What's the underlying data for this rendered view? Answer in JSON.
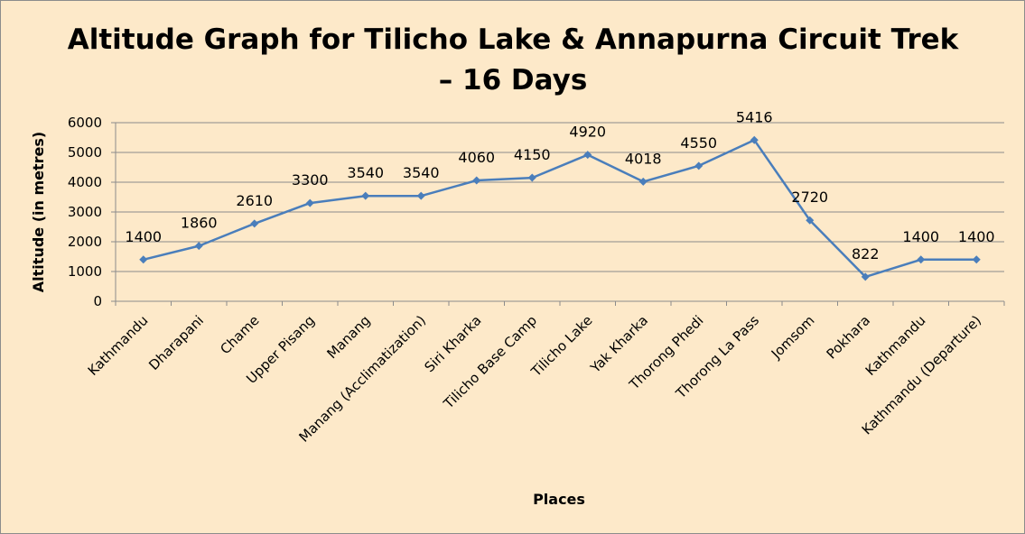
{
  "chart_data": {
    "type": "line",
    "title_lines": [
      "Altitude Graph for Tilicho Lake & Annapurna Circuit Trek",
      "– 16 Days"
    ],
    "xlabel": "Places",
    "ylabel": "Altitude (in metres)",
    "ylim": [
      0,
      6000
    ],
    "y_ticks": [
      "0",
      "1000",
      "2000",
      "3000",
      "4000",
      "5000",
      "6000"
    ],
    "grid": "horizontal",
    "legend": "none",
    "categories": [
      "Kathmandu",
      "Dharapani",
      "Chame",
      "Upper Pisang",
      "Manang",
      "Manang (Acclimatization)",
      "Siri Kharka",
      "Tilicho Base Camp",
      "Tilicho Lake",
      "Yak Kharka",
      "Thorong Phedi",
      "Thorong La Pass",
      "Jomsom",
      "Pokhara",
      "Kathmandu",
      "Kathmandu (Departure)"
    ],
    "values": [
      1400,
      1860,
      2610,
      3300,
      3540,
      3540,
      4060,
      4150,
      4920,
      4018,
      4550,
      5416,
      2720,
      822,
      1400,
      1400
    ],
    "data_labels": [
      "1400",
      "1860",
      "2610",
      "3300",
      "3540",
      "3540",
      "4060",
      "4150",
      "4920",
      "4018",
      "4550",
      "5416",
      "2720",
      "822",
      "1400",
      "1400"
    ],
    "colors": {
      "line": "#4A7EBB",
      "marker": "#4A7EBB",
      "grid": "#8C8C8C",
      "background": "#FDE9C9"
    }
  }
}
